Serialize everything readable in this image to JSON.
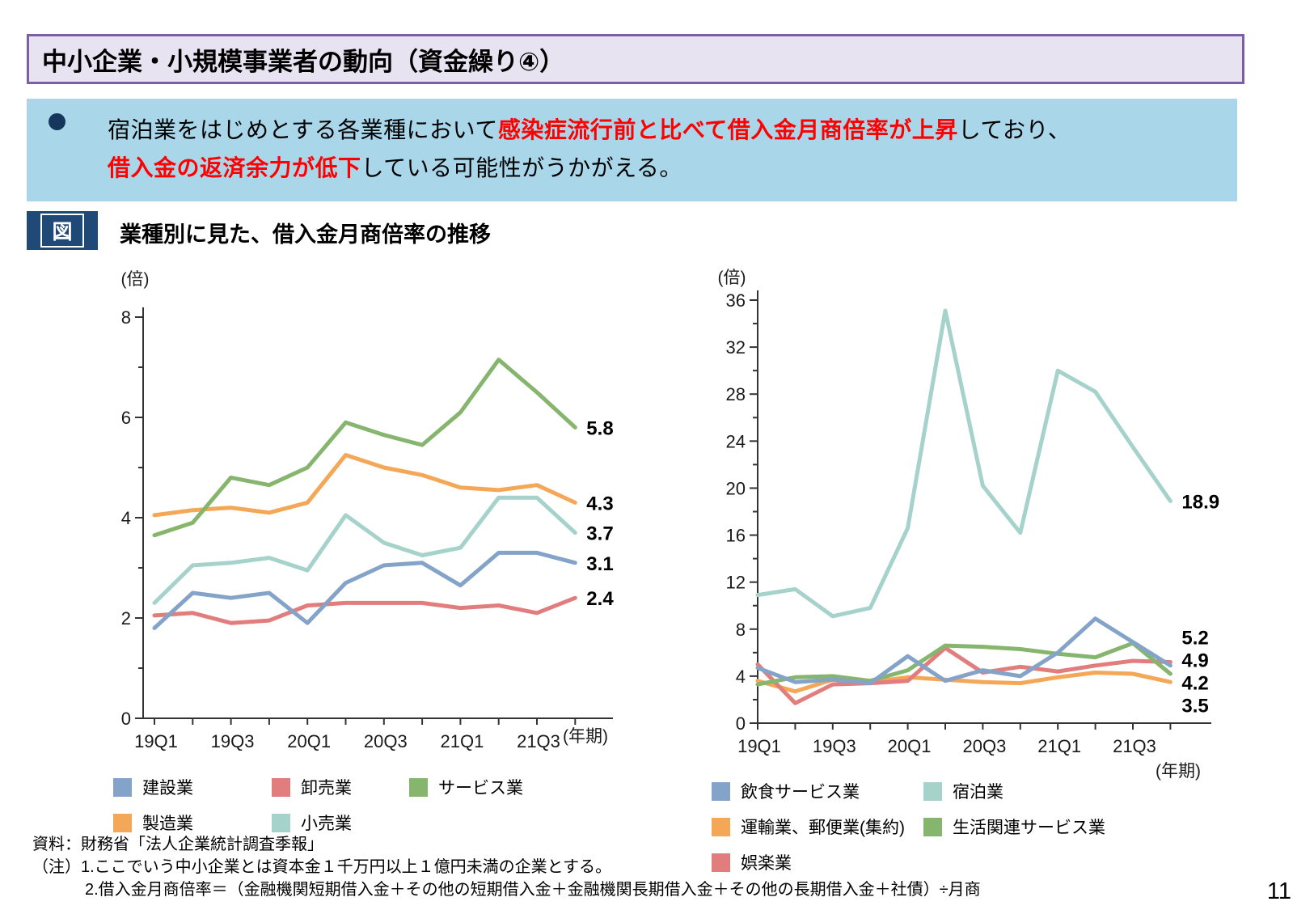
{
  "page": {
    "title": "中小企業・小規模事業者の動向（資金繰り④）",
    "page_number": "11"
  },
  "summary": {
    "bullet_icon": "filled-circle",
    "lines": [
      [
        {
          "text": "宿泊業をはじめとする各業種において",
          "red": false
        },
        {
          "text": "感染症流行前と比べて借入金月商倍率が上昇",
          "red": true
        },
        {
          "text": "しており、",
          "red": false
        }
      ],
      [
        {
          "text": "借入金の返済余力が低下",
          "red": true
        },
        {
          "text": "している可能性がうかがえる。",
          "red": false
        }
      ]
    ]
  },
  "figure": {
    "tag": "図",
    "caption": "業種別に見た、借入金月商倍率の推移"
  },
  "colors": {
    "series": {
      "blue": "#84A3C9",
      "orange": "#F4A857",
      "red": "#E27D7D",
      "teal": "#A5D2CB",
      "green": "#86B56E"
    },
    "title_bg": "#E8E3F1",
    "title_border": "#7C5FA8",
    "summary_bg": "#A9D6E9",
    "bullet": "#17365D",
    "figure_tag_bg": "#1F4977",
    "highlight_text": "#FF0000",
    "axis": "#333333"
  },
  "chart_data": [
    {
      "id": "chart-left",
      "type": "line",
      "title": "業種別に見た、借入金月商倍率の推移（左：一般業種）",
      "unit_label": "(倍)",
      "x_axis_label": "(年期)",
      "x_categories": [
        "19Q1",
        "19Q2",
        "19Q3",
        "19Q4",
        "20Q1",
        "20Q2",
        "20Q3",
        "20Q4",
        "21Q1",
        "21Q2",
        "21Q3",
        "21Q4"
      ],
      "x_tick_labels": [
        "19Q1",
        "19Q3",
        "20Q1",
        "20Q3",
        "21Q1",
        "21Q3"
      ],
      "ylim": [
        0,
        8
      ],
      "y_major": 2,
      "y_minor": 1,
      "grid": false,
      "series": [
        {
          "name": "卸売業",
          "color": "red",
          "end_label": "2.4",
          "values": [
            2.05,
            2.1,
            1.9,
            1.95,
            2.25,
            2.3,
            2.3,
            2.3,
            2.2,
            2.25,
            2.1,
            2.4
          ]
        },
        {
          "name": "製造業",
          "color": "orange",
          "end_label": "4.3",
          "values": [
            4.05,
            4.15,
            4.2,
            4.1,
            4.3,
            5.25,
            5.0,
            4.85,
            4.6,
            4.55,
            4.65,
            4.3
          ]
        },
        {
          "name": "建設業",
          "color": "blue",
          "end_label": "3.1",
          "values": [
            1.8,
            2.5,
            2.4,
            2.5,
            1.9,
            2.7,
            3.05,
            3.1,
            2.65,
            3.3,
            3.3,
            3.1
          ]
        },
        {
          "name": "小売業",
          "color": "teal",
          "end_label": "3.7",
          "values": [
            2.3,
            3.05,
            3.1,
            3.2,
            2.95,
            4.05,
            3.5,
            3.25,
            3.4,
            4.4,
            4.4,
            3.7
          ]
        },
        {
          "name": "サービス業",
          "color": "green",
          "end_label": "5.8",
          "values": [
            3.65,
            3.9,
            4.8,
            4.65,
            5.0,
            5.9,
            5.65,
            5.45,
            6.1,
            7.15,
            6.5,
            5.8
          ]
        }
      ],
      "legend": [
        {
          "label": "建設業",
          "color": "blue"
        },
        {
          "label": "卸売業",
          "color": "red"
        },
        {
          "label": "サービス業",
          "color": "green"
        },
        {
          "label": "製造業",
          "color": "orange"
        },
        {
          "label": "小売業",
          "color": "teal"
        }
      ],
      "legend_position": "bottom"
    },
    {
      "id": "chart-right",
      "type": "line",
      "title": "業種別に見た、借入金月商倍率の推移（右：対面サービス業種）",
      "unit_label": "(倍)",
      "x_axis_label": "(年期)",
      "x_categories": [
        "19Q1",
        "19Q2",
        "19Q3",
        "19Q4",
        "20Q1",
        "20Q2",
        "20Q3",
        "20Q4",
        "21Q1",
        "21Q2",
        "21Q3",
        "21Q4"
      ],
      "x_tick_labels": [
        "19Q1",
        "19Q3",
        "20Q1",
        "20Q3",
        "21Q1",
        "21Q3"
      ],
      "ylim": [
        0,
        36
      ],
      "y_major": 4,
      "y_minor": 2,
      "grid": false,
      "series": [
        {
          "name": "運輸業、郵便業(集約)",
          "color": "orange",
          "end_label": "3.5",
          "values": [
            3.6,
            2.7,
            3.7,
            3.5,
            3.9,
            3.7,
            3.5,
            3.4,
            3.9,
            4.3,
            4.2,
            3.5
          ]
        },
        {
          "name": "娯楽業",
          "color": "red",
          "end_label": "5.2",
          "values": [
            5.0,
            1.7,
            3.3,
            3.4,
            3.6,
            6.4,
            4.3,
            4.8,
            4.4,
            4.9,
            5.3,
            5.2
          ]
        },
        {
          "name": "生活関連サービス業",
          "color": "green",
          "end_label": "4.2",
          "values": [
            3.3,
            3.9,
            4.0,
            3.6,
            4.5,
            6.6,
            6.5,
            6.3,
            5.9,
            5.6,
            6.8,
            4.2
          ]
        },
        {
          "name": "飲食サービス業",
          "color": "blue",
          "end_label": "4.9",
          "values": [
            4.7,
            3.5,
            3.7,
            3.4,
            5.7,
            3.6,
            4.5,
            4.0,
            6.0,
            8.9,
            6.9,
            4.9
          ]
        },
        {
          "name": "宿泊業",
          "color": "teal",
          "end_label": "18.9",
          "values": [
            10.9,
            11.4,
            9.1,
            9.8,
            16.6,
            35.1,
            20.2,
            16.2,
            30.0,
            28.2,
            23.5,
            18.9
          ]
        }
      ],
      "legend": [
        {
          "label": "飲食サービス業",
          "color": "blue"
        },
        {
          "label": "宿泊業",
          "color": "teal"
        },
        {
          "label": "運輸業、郵便業(集約)",
          "color": "orange"
        },
        {
          "label": "生活関連サービス業",
          "color": "green"
        },
        {
          "label": "娯楽業",
          "color": "red"
        }
      ],
      "legend_position": "bottom"
    }
  ],
  "footer": {
    "source": "資料：財務省「法人企業統計調査季報」",
    "note1": "（注）1.ここでいう中小企業とは資本金１千万円以上１億円未満の企業とする。",
    "note2": "2.借入金月商倍率＝（金融機関短期借入金＋その他の短期借入金＋金融機関長期借入金＋その他の長期借入金＋社債）÷月商"
  }
}
